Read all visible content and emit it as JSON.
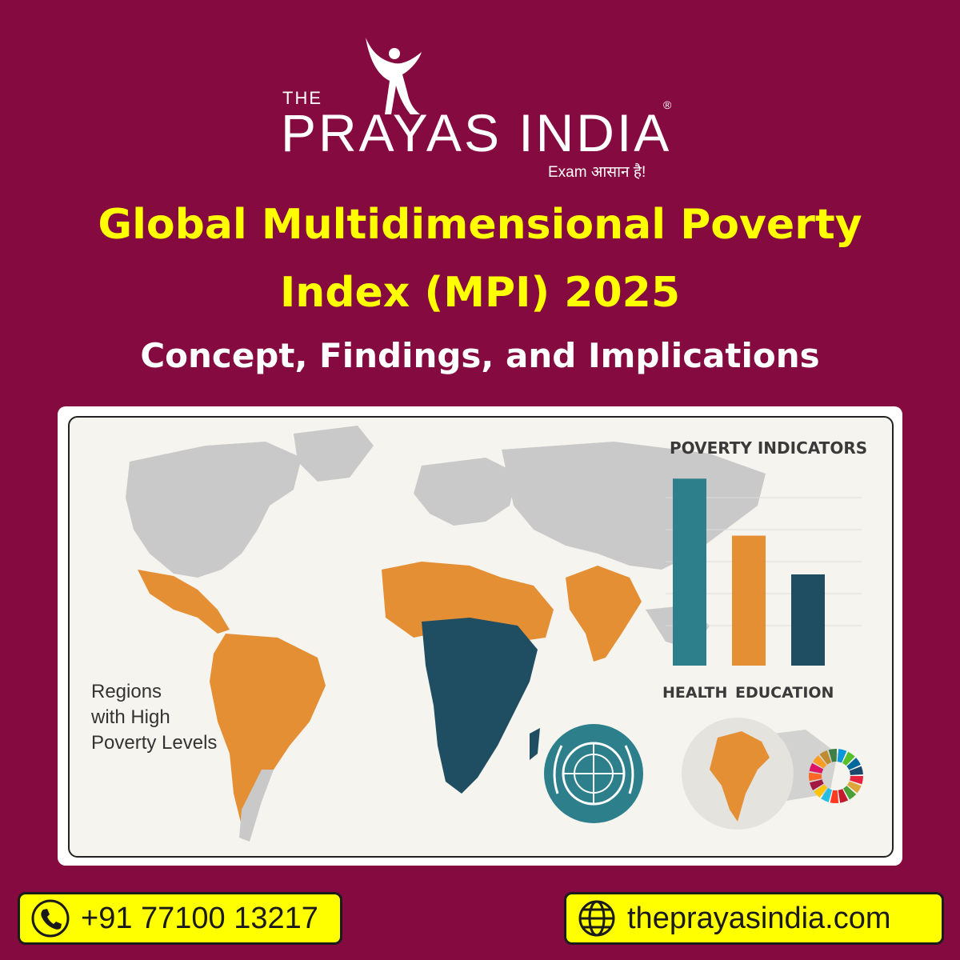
{
  "logo": {
    "the": "THE",
    "name": "PRAYAS INDIA",
    "registered": "®",
    "tagline": "Exam आसान है!"
  },
  "title": {
    "line1": "Global Multidimensional Poverty",
    "line2": "Index (MPI) 2025"
  },
  "subtitle": "Concept, Findings, and Implications",
  "infographic": {
    "map_label": [
      "Regions",
      "with High",
      "Poverty Levels"
    ],
    "indicators_title": "POVERTY INDICATORS",
    "bar_labels": [
      "HEALTH",
      "EDUCATION"
    ],
    "bars": [
      {
        "level": 0.82,
        "color": "#2e7f8c"
      },
      {
        "level": 0.57,
        "color": "#e58f35"
      },
      {
        "level": 0.4,
        "color": "#1f4e63"
      }
    ],
    "colors": {
      "high_poverty": "#e58f35",
      "severe_poverty": "#1f4e63",
      "land": "#c9c9c9"
    }
  },
  "contact": {
    "phone": "+91 77100 13217",
    "website": "theprayasindia.com",
    "phone_icon": "phone-icon",
    "web_icon": "globe-icon"
  }
}
